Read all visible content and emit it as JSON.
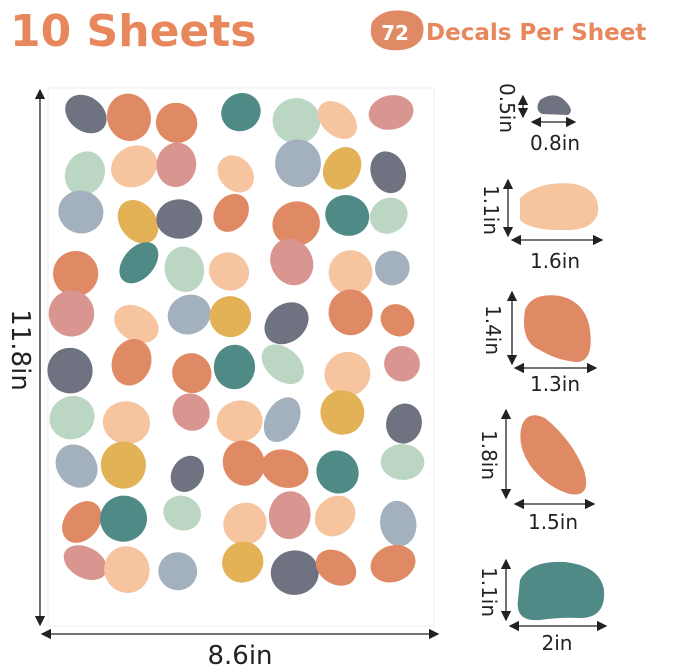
{
  "header": {
    "sheets": "10 Sheets",
    "badge": "72",
    "caption": "Decals Per Sheet"
  },
  "sheet": {
    "height": "11.8in",
    "width": "8.6in"
  },
  "sizes": [
    {
      "height": "0.5in",
      "width": "0.8in"
    },
    {
      "height": "1.1in",
      "width": "1.6in"
    },
    {
      "height": "1.4in",
      "width": "1.3in"
    },
    {
      "height": "1.8in",
      "width": "1.5in"
    },
    {
      "height": "1.1in",
      "width": "2in"
    }
  ]
}
